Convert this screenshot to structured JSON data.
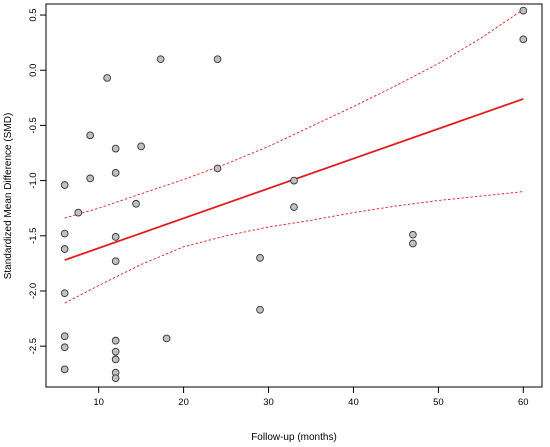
{
  "chart_data": {
    "type": "scatter",
    "title": "",
    "xlabel": "Follow-up (months)",
    "ylabel": "Standardized Mean Difference (SMD)",
    "xlim": [
      3.8,
      62.2
    ],
    "ylim": [
      -2.87,
      0.6
    ],
    "x_ticks": [
      10,
      20,
      30,
      40,
      50,
      60
    ],
    "y_ticks": [
      -2.5,
      -2.0,
      -1.5,
      -1.0,
      -0.5,
      0.0,
      0.5
    ],
    "x_tick_labels": [
      "10",
      "20",
      "30",
      "40",
      "50",
      "60"
    ],
    "y_tick_labels": [
      "-2.5",
      "-2.0",
      "-1.5",
      "-1.0",
      "-0.5",
      "0.0",
      "0.5"
    ],
    "grid": false,
    "legend": "none",
    "colors": {
      "points_fill": "#c0c0c0",
      "points_stroke": "#333333",
      "regression": "#e41a1c",
      "ci": "#e41a1c"
    },
    "points": [
      {
        "x": 6,
        "y": -1.04
      },
      {
        "x": 6,
        "y": -1.48
      },
      {
        "x": 6,
        "y": -1.62
      },
      {
        "x": 6,
        "y": -2.02
      },
      {
        "x": 6,
        "y": -2.41
      },
      {
        "x": 6,
        "y": -2.51
      },
      {
        "x": 6,
        "y": -2.71
      },
      {
        "x": 7.6,
        "y": -1.29
      },
      {
        "x": 9,
        "y": -0.59
      },
      {
        "x": 9,
        "y": -0.98
      },
      {
        "x": 11,
        "y": -0.07
      },
      {
        "x": 12,
        "y": -0.71
      },
      {
        "x": 12,
        "y": -0.93
      },
      {
        "x": 12,
        "y": -1.51
      },
      {
        "x": 12,
        "y": -1.73
      },
      {
        "x": 12,
        "y": -2.45
      },
      {
        "x": 12,
        "y": -2.55
      },
      {
        "x": 12,
        "y": -2.62
      },
      {
        "x": 12,
        "y": -2.74
      },
      {
        "x": 12,
        "y": -2.79
      },
      {
        "x": 14.4,
        "y": -1.21
      },
      {
        "x": 15,
        "y": -0.69
      },
      {
        "x": 17.3,
        "y": 0.1
      },
      {
        "x": 18,
        "y": -2.43
      },
      {
        "x": 24,
        "y": 0.1
      },
      {
        "x": 24,
        "y": -0.89
      },
      {
        "x": 29,
        "y": -1.7
      },
      {
        "x": 29,
        "y": -2.17
      },
      {
        "x": 33,
        "y": -1.0
      },
      {
        "x": 33,
        "y": -1.24
      },
      {
        "x": 47,
        "y": -1.49
      },
      {
        "x": 47,
        "y": -1.57
      },
      {
        "x": 60,
        "y": 0.54
      },
      {
        "x": 60,
        "y": 0.28
      }
    ],
    "regression_line": {
      "x": [
        6,
        60
      ],
      "y": [
        -1.72,
        -0.26
      ]
    },
    "ci_upper": {
      "x": [
        6,
        10,
        15,
        20,
        25,
        30,
        35,
        40,
        45,
        50,
        55,
        60
      ],
      "y": [
        -1.34,
        -1.25,
        -1.12,
        -0.99,
        -0.85,
        -0.69,
        -0.51,
        -0.33,
        -0.14,
        0.06,
        0.29,
        0.55
      ]
    },
    "ci_lower": {
      "x": [
        6,
        10,
        15,
        20,
        25,
        30,
        35,
        40,
        45,
        50,
        55,
        60
      ],
      "y": [
        -2.11,
        -1.95,
        -1.76,
        -1.6,
        -1.5,
        -1.42,
        -1.36,
        -1.29,
        -1.23,
        -1.18,
        -1.14,
        -1.1
      ]
    }
  }
}
